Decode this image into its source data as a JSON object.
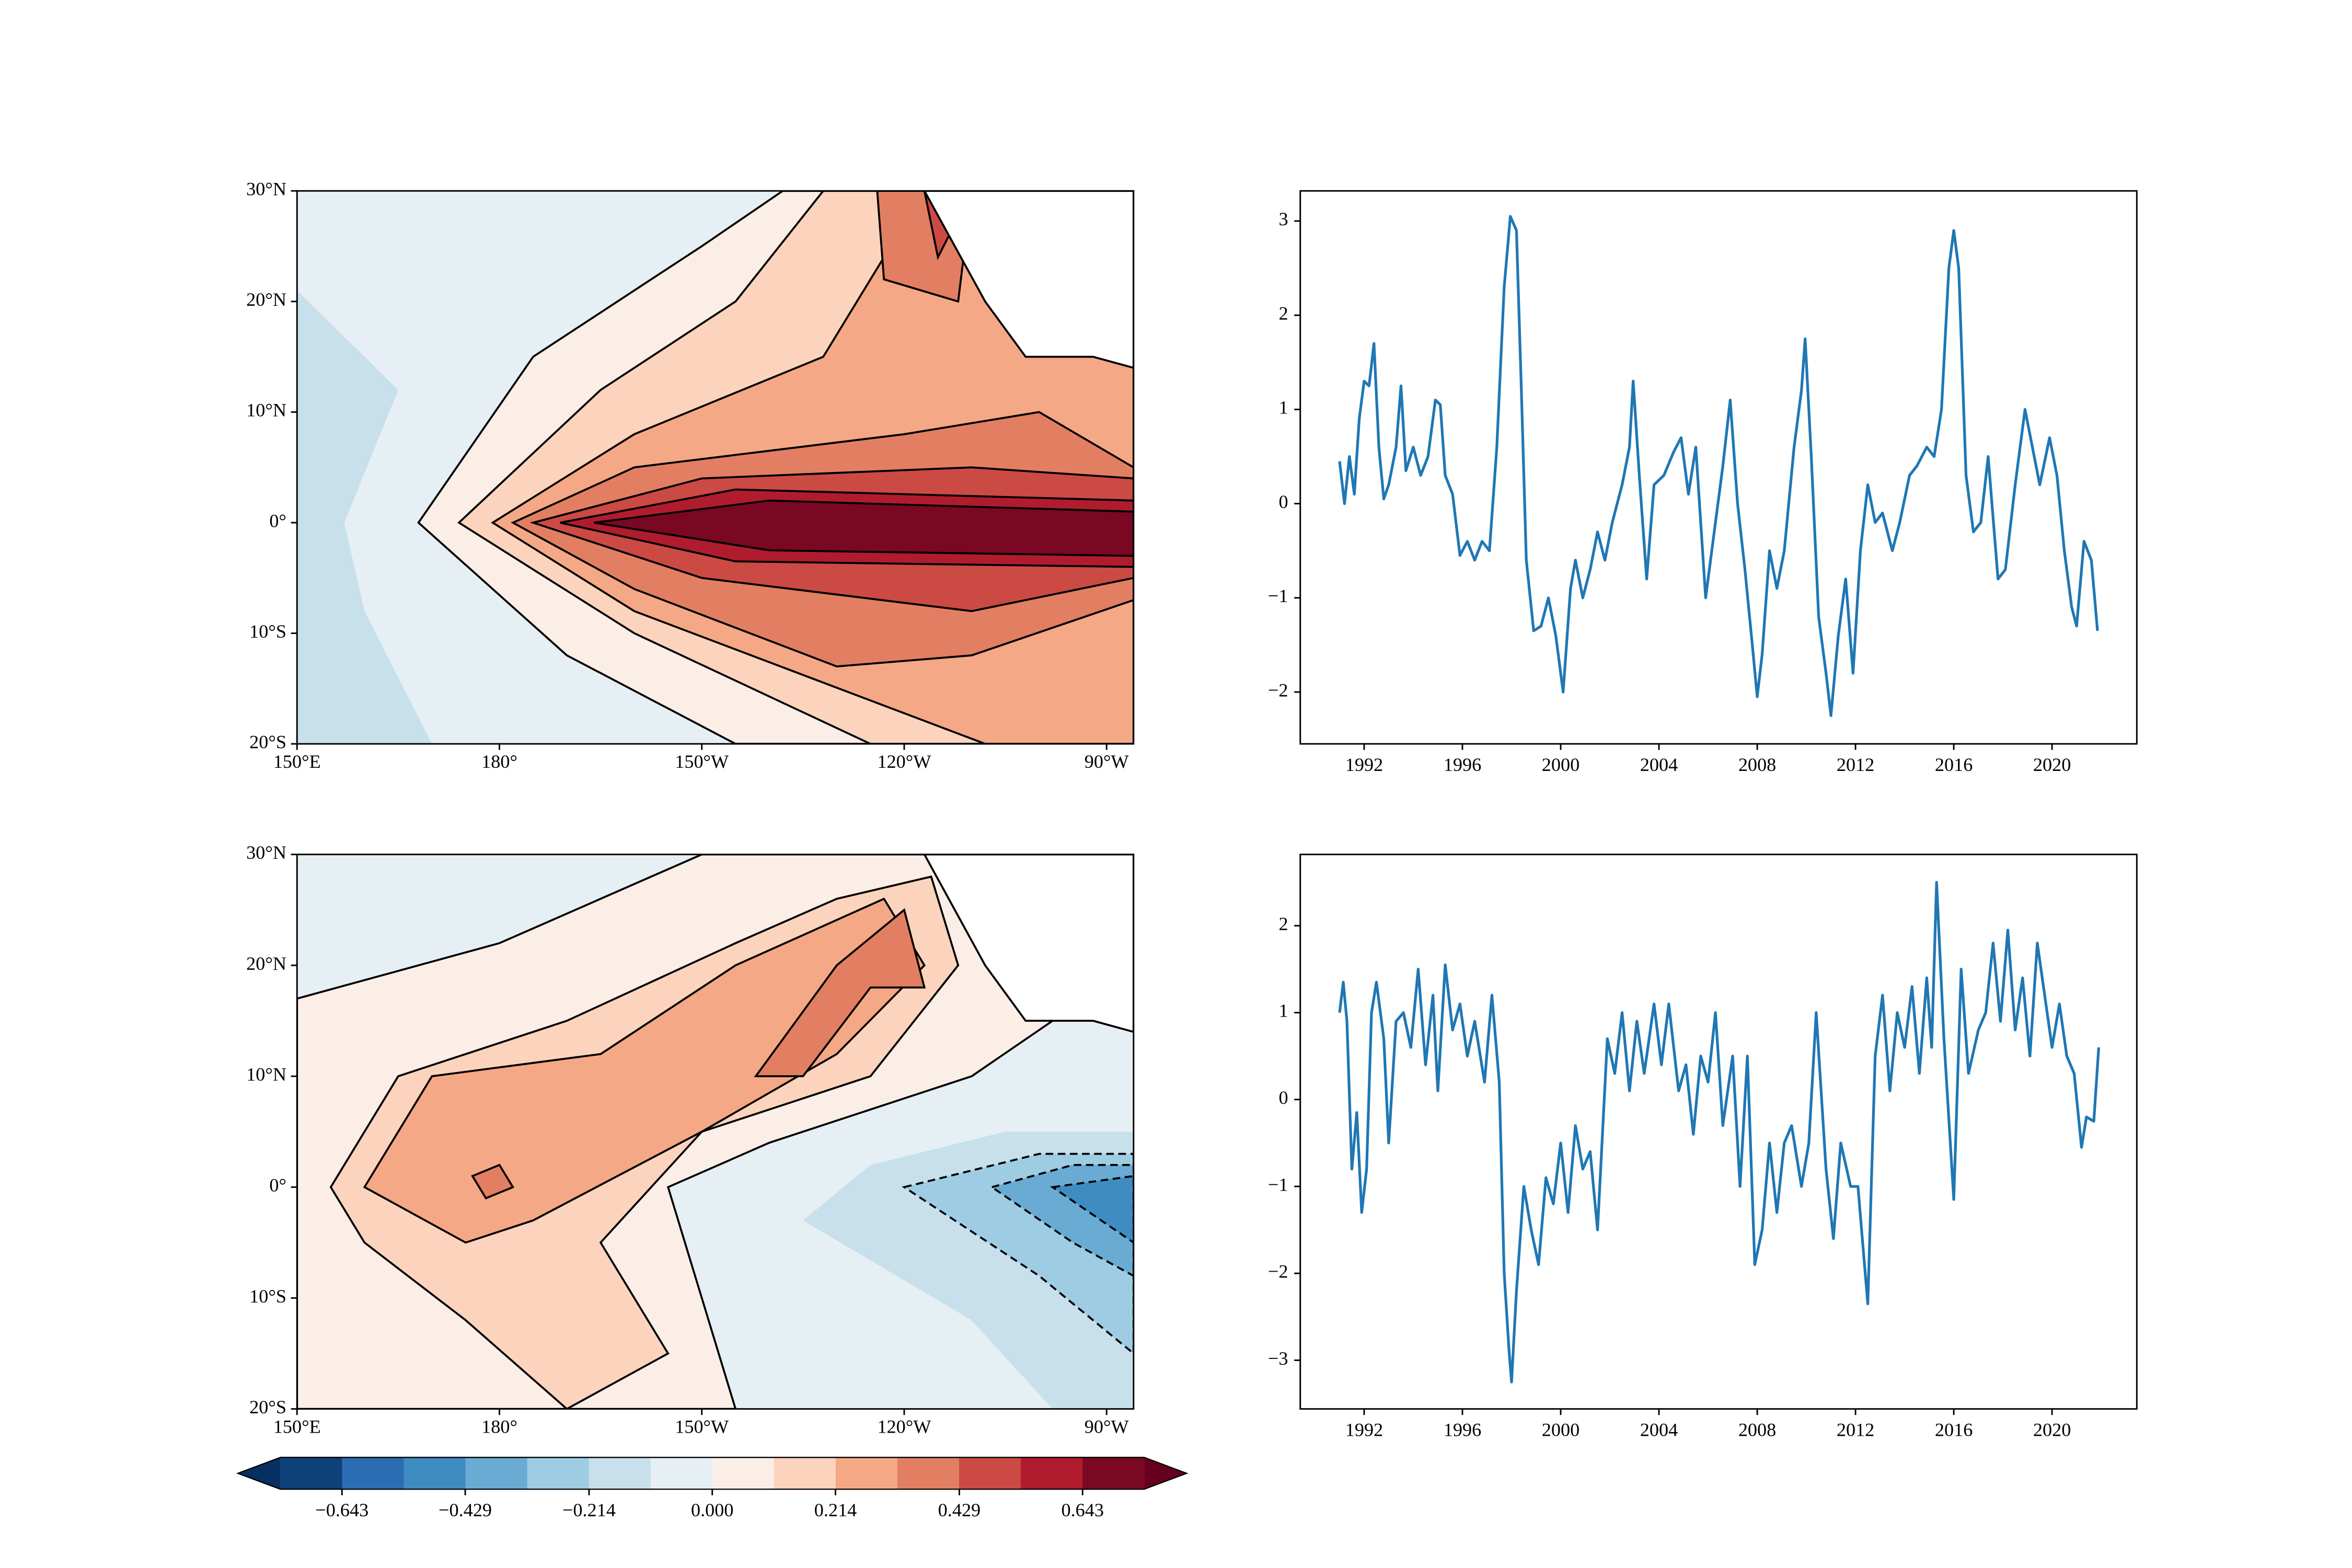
{
  "chart_data": [
    {
      "type": "map",
      "xlim": [
        150,
        274
      ],
      "ylim": [
        -20,
        30
      ],
      "xticks": [
        {
          "value": 150,
          "label": "150°E"
        },
        {
          "value": 180,
          "label": "180°"
        },
        {
          "value": 210,
          "label": "150°W"
        },
        {
          "value": 240,
          "label": "120°W"
        },
        {
          "value": 270,
          "label": "90°W"
        }
      ],
      "yticks": [
        {
          "value": -20,
          "label": "20°S"
        },
        {
          "value": -10,
          "label": "10°S"
        },
        {
          "value": 0,
          "label": "0°"
        },
        {
          "value": 10,
          "label": "10°N"
        },
        {
          "value": 20,
          "label": "20°N"
        },
        {
          "value": 30,
          "label": "30°N"
        }
      ]
    },
    {
      "type": "map",
      "xlim": [
        150,
        274
      ],
      "ylim": [
        -20,
        30
      ],
      "xticks": [
        {
          "value": 150,
          "label": "150°E"
        },
        {
          "value": 180,
          "label": "180°"
        },
        {
          "value": 210,
          "label": "150°W"
        },
        {
          "value": 240,
          "label": "120°W"
        },
        {
          "value": 270,
          "label": "90°W"
        }
      ],
      "yticks": [
        {
          "value": -20,
          "label": "20°S"
        },
        {
          "value": -10,
          "label": "10°S"
        },
        {
          "value": 0,
          "label": "0°"
        },
        {
          "value": 10,
          "label": "10°N"
        },
        {
          "value": 20,
          "label": "20°N"
        },
        {
          "value": 30,
          "label": "30°N"
        }
      ]
    },
    {
      "type": "line",
      "color": "#1f77b4",
      "xlim": [
        1989.4,
        2023.45
      ],
      "ylim": [
        -2.55,
        3.32
      ],
      "xticks": [
        1992,
        1996,
        2000,
        2004,
        2008,
        2012,
        2016,
        2020
      ],
      "yticks": [
        {
          "value": -2,
          "label": "−2"
        },
        {
          "value": -1,
          "label": "−1"
        },
        0,
        1,
        2,
        3
      ],
      "x": [
        1991.0,
        1991.2,
        1991.4,
        1991.6,
        1991.8,
        1992.0,
        1992.2,
        1992.4,
        1992.6,
        1992.8,
        1993.0,
        1993.3,
        1993.5,
        1993.7,
        1994.0,
        1994.3,
        1994.6,
        1994.9,
        1995.1,
        1995.3,
        1995.6,
        1995.9,
        1996.2,
        1996.5,
        1996.8,
        1997.1,
        1997.4,
        1997.7,
        1997.95,
        1998.2,
        1998.4,
        1998.6,
        1998.9,
        1999.2,
        1999.5,
        1999.8,
        2000.1,
        2000.4,
        2000.6,
        2000.9,
        2001.2,
        2001.5,
        2001.8,
        2002.1,
        2002.5,
        2002.8,
        2002.95,
        2003.2,
        2003.5,
        2003.8,
        2004.2,
        2004.6,
        2004.9,
        2005.2,
        2005.5,
        2005.9,
        2006.2,
        2006.6,
        2006.9,
        2007.2,
        2007.5,
        2007.8,
        2008.0,
        2008.2,
        2008.5,
        2008.8,
        2009.1,
        2009.5,
        2009.8,
        2009.95,
        2010.2,
        2010.5,
        2010.8,
        2011.0,
        2011.3,
        2011.6,
        2011.9,
        2012.2,
        2012.5,
        2012.8,
        2013.1,
        2013.5,
        2013.8,
        2014.2,
        2014.5,
        2014.9,
        2015.2,
        2015.5,
        2015.8,
        2016.0,
        2016.2,
        2016.5,
        2016.8,
        2017.1,
        2017.4,
        2017.8,
        2018.1,
        2018.5,
        2018.9,
        2019.2,
        2019.5,
        2019.9,
        2020.2,
        2020.5,
        2020.8,
        2021.0,
        2021.3,
        2021.6,
        2021.85
      ],
      "values": [
        0.45,
        0.0,
        0.5,
        0.1,
        0.9,
        1.3,
        1.25,
        1.7,
        0.6,
        0.05,
        0.2,
        0.6,
        1.25,
        0.35,
        0.6,
        0.3,
        0.5,
        1.1,
        1.05,
        0.3,
        0.1,
        -0.55,
        -0.4,
        -0.6,
        -0.4,
        -0.5,
        0.6,
        2.3,
        3.05,
        2.9,
        1.2,
        -0.6,
        -1.35,
        -1.3,
        -1.0,
        -1.4,
        -2.0,
        -0.9,
        -0.6,
        -1.0,
        -0.7,
        -0.3,
        -0.6,
        -0.2,
        0.2,
        0.6,
        1.3,
        0.3,
        -0.8,
        0.2,
        0.3,
        0.55,
        0.7,
        0.1,
        0.6,
        -1.0,
        -0.4,
        0.4,
        1.1,
        0.0,
        -0.7,
        -1.5,
        -2.05,
        -1.6,
        -0.5,
        -0.9,
        -0.5,
        0.6,
        1.2,
        1.75,
        0.5,
        -1.2,
        -1.8,
        -2.25,
        -1.4,
        -0.8,
        -1.8,
        -0.5,
        0.2,
        -0.2,
        -0.1,
        -0.5,
        -0.2,
        0.3,
        0.4,
        0.6,
        0.5,
        1.0,
        2.5,
        2.9,
        2.5,
        0.3,
        -0.3,
        -0.2,
        0.5,
        -0.8,
        -0.7,
        0.2,
        1.0,
        0.6,
        0.2,
        0.7,
        0.3,
        -0.5,
        -1.1,
        -1.3,
        -0.4,
        -0.6,
        -1.35
      ]
    },
    {
      "type": "line",
      "color": "#1f77b4",
      "xlim": [
        1989.4,
        2023.45
      ],
      "ylim": [
        -3.56,
        2.82
      ],
      "xticks": [
        1992,
        1996,
        2000,
        2004,
        2008,
        2012,
        2016,
        2020
      ],
      "yticks": [
        {
          "value": -3,
          "label": "−3"
        },
        {
          "value": -2,
          "label": "−2"
        },
        {
          "value": -1,
          "label": "−1"
        },
        0,
        1,
        2
      ],
      "x": [
        1991.0,
        1991.15,
        1991.3,
        1991.5,
        1991.7,
        1991.9,
        1992.1,
        1992.3,
        1992.5,
        1992.8,
        1993.0,
        1993.3,
        1993.6,
        1993.9,
        1994.2,
        1994.5,
        1994.8,
        1995.0,
        1995.3,
        1995.6,
        1995.9,
        1996.2,
        1996.5,
        1996.9,
        1997.2,
        1997.5,
        1997.7,
        1997.9,
        1998.0,
        1998.2,
        1998.5,
        1998.8,
        1999.1,
        1999.4,
        1999.7,
        2000.0,
        2000.3,
        2000.6,
        2000.9,
        2001.2,
        2001.5,
        2001.9,
        2002.2,
        2002.5,
        2002.8,
        2003.1,
        2003.4,
        2003.8,
        2004.1,
        2004.4,
        2004.8,
        2005.1,
        2005.4,
        2005.7,
        2006.0,
        2006.3,
        2006.6,
        2007.0,
        2007.3,
        2007.6,
        2007.9,
        2008.2,
        2008.5,
        2008.8,
        2009.1,
        2009.4,
        2009.8,
        2010.1,
        2010.4,
        2010.8,
        2011.1,
        2011.4,
        2011.8,
        2012.1,
        2012.5,
        2012.8,
        2013.1,
        2013.4,
        2013.7,
        2014.0,
        2014.3,
        2014.6,
        2014.9,
        2015.1,
        2015.3,
        2015.6,
        2016.0,
        2016.3,
        2016.6,
        2017.0,
        2017.3,
        2017.6,
        2017.9,
        2018.2,
        2018.5,
        2018.8,
        2019.1,
        2019.4,
        2019.7,
        2020.0,
        2020.3,
        2020.6,
        2020.9,
        2021.2,
        2021.4,
        2021.7,
        2021.9
      ],
      "values": [
        1.0,
        1.35,
        0.9,
        -0.8,
        -0.15,
        -1.3,
        -0.8,
        1.0,
        1.35,
        0.7,
        -0.5,
        0.9,
        1.0,
        0.6,
        1.5,
        0.4,
        1.2,
        0.1,
        1.55,
        0.8,
        1.1,
        0.5,
        0.9,
        0.2,
        1.2,
        0.2,
        -2.0,
        -2.9,
        -3.25,
        -2.2,
        -1.0,
        -1.5,
        -1.9,
        -0.9,
        -1.2,
        -0.5,
        -1.3,
        -0.3,
        -0.8,
        -0.6,
        -1.5,
        0.7,
        0.3,
        1.0,
        0.1,
        0.9,
        0.3,
        1.1,
        0.4,
        1.1,
        0.1,
        0.4,
        -0.4,
        0.5,
        0.2,
        1.0,
        -0.3,
        0.5,
        -1.0,
        0.5,
        -1.9,
        -1.5,
        -0.5,
        -1.3,
        -0.5,
        -0.3,
        -1.0,
        -0.5,
        1.0,
        -0.8,
        -1.6,
        -0.5,
        -1.0,
        -1.0,
        -2.35,
        0.5,
        1.2,
        0.1,
        1.0,
        0.6,
        1.3,
        0.3,
        1.4,
        0.6,
        2.5,
        0.7,
        -1.15,
        1.5,
        0.3,
        0.8,
        1.0,
        1.8,
        0.9,
        1.95,
        0.8,
        1.4,
        0.5,
        1.8,
        1.2,
        0.6,
        1.1,
        0.5,
        0.3,
        -0.55,
        -0.2,
        -0.25,
        0.6
      ]
    },
    {
      "type": "colorbar",
      "clim": [
        -0.75,
        0.75
      ],
      "colors": [
        "#0e4178",
        "#2a6db2",
        "#3e8cc2",
        "#6aabd3",
        "#9ecce3",
        "#c8dfec",
        "#e6eff4",
        "#fbeee7",
        "#fcd4be",
        "#f5a886",
        "#e27f63",
        "#cc4a44",
        "#b01c2e",
        "#7a0822"
      ],
      "extend_colors": [
        "#053061",
        "#67001f"
      ],
      "ticks": [
        {
          "value": -0.643,
          "label": "−0.643"
        },
        {
          "value": -0.429,
          "label": "−0.429"
        },
        {
          "value": -0.214,
          "label": "−0.214"
        },
        {
          "value": 0,
          "label": "0.000"
        },
        0.214,
        0.429,
        0.643
      ]
    }
  ]
}
